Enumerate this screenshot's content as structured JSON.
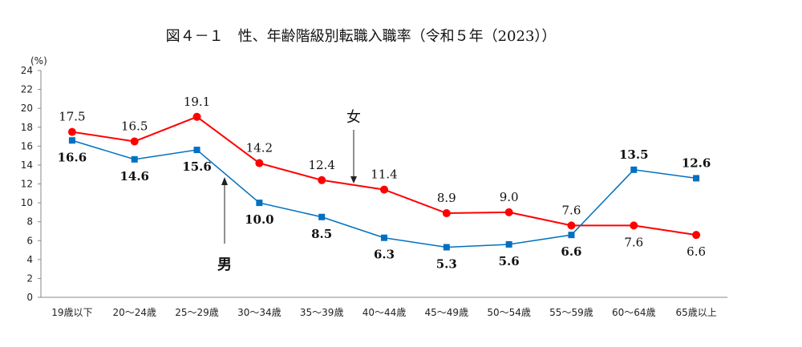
{
  "chart_data": {
    "type": "line",
    "title": "図４－１　性、年齢階級別転職入職率（令和５年（2023））",
    "ylabel": "(%)",
    "xlabel": "",
    "ylim": [
      0,
      24
    ],
    "yticks": [
      0,
      2,
      4,
      6,
      8,
      10,
      12,
      14,
      16,
      18,
      20,
      22,
      24
    ],
    "grid": false,
    "categories": [
      "19歳以下",
      "20～24歳",
      "25～29歳",
      "30～34歳",
      "35～39歳",
      "40～44歳",
      "45～49歳",
      "50～54歳",
      "55～59歳",
      "60～64歳",
      "65歳以上"
    ],
    "series": [
      {
        "name": "女",
        "color": "#ff0000",
        "marker": "circle",
        "values": [
          17.5,
          16.5,
          19.1,
          14.2,
          12.4,
          11.4,
          8.9,
          9.0,
          7.6,
          7.6,
          6.6
        ],
        "labels": [
          "17.5",
          "16.5",
          "19.1",
          "14.2",
          "12.4",
          "11.4",
          "8.9",
          "9.0",
          "7.6",
          "7.6",
          "6.6"
        ]
      },
      {
        "name": "男",
        "color": "#0070c0",
        "marker": "square",
        "values": [
          16.6,
          14.6,
          15.6,
          10.0,
          8.5,
          6.3,
          5.3,
          5.6,
          6.6,
          13.5,
          12.6
        ],
        "labels": [
          "16.6",
          "14.6",
          "15.6",
          "10.0",
          "8.5",
          "6.3",
          "5.3",
          "5.6",
          "6.6",
          "13.5",
          "12.6"
        ]
      }
    ],
    "annotations": [
      "女",
      "男"
    ]
  }
}
